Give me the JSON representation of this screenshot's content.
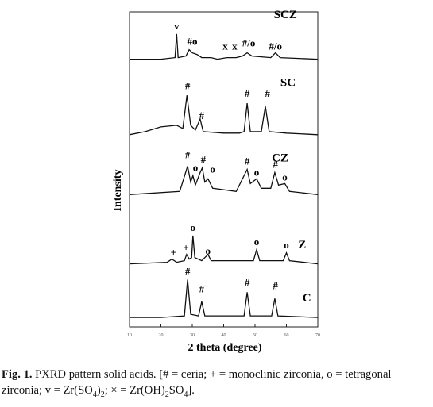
{
  "chart_data": {
    "type": "line",
    "xlabel": "2 theta (degree)",
    "ylabel": "Intensity",
    "xlim": [
      10,
      70
    ],
    "xticks": [
      10,
      20,
      30,
      40,
      50,
      60,
      70
    ],
    "ylim": [
      0,
      100
    ],
    "color": "#111111",
    "series": [
      {
        "name": "C",
        "x": [
          10,
          20,
          27.5,
          28.5,
          29.5,
          32,
          33,
          34,
          46.5,
          47.5,
          48.5,
          55.3,
          56.3,
          57.3,
          70
        ],
        "values": [
          3,
          3,
          3.5,
          15,
          4,
          3.5,
          8,
          3.5,
          3.5,
          11,
          3.5,
          3.5,
          9,
          3.5,
          3
        ]
      },
      {
        "name": "Z",
        "x": [
          10,
          22,
          23.5,
          25,
          27.5,
          28.2,
          29,
          29.8,
          30.2,
          30.8,
          33,
          35,
          36,
          49.5,
          50.5,
          51.5,
          59,
          60,
          61,
          70
        ],
        "values": [
          20,
          20.5,
          21.5,
          20.5,
          21,
          23,
          21.5,
          22,
          29,
          22,
          21,
          23,
          21,
          21,
          24.5,
          21,
          21,
          23.5,
          21,
          20
        ]
      },
      {
        "name": "CZ",
        "x": [
          10,
          26,
          28.5,
          29.5,
          30.2,
          31,
          32.5,
          33.2,
          34,
          35,
          36.5,
          44,
          47.5,
          48.5,
          50.5,
          52,
          55,
          56.3,
          57.5,
          59.5,
          61,
          70
        ],
        "values": [
          42,
          43,
          51,
          46,
          48,
          45,
          49,
          50.5,
          46,
          47,
          44,
          43,
          50,
          45.5,
          47,
          44,
          44,
          49,
          45,
          45.5,
          43,
          42
        ]
      },
      {
        "name": "SC",
        "x": [
          10,
          15,
          20,
          25,
          27,
          28.3,
          29.5,
          31,
          32.5,
          33.5,
          40,
          45,
          46.5,
          47.5,
          48.5,
          52,
          53.3,
          54.5,
          60,
          70
        ],
        "values": [
          61,
          62,
          63.5,
          64,
          63,
          73.5,
          64,
          62.5,
          66,
          62,
          61.5,
          61.5,
          62,
          71,
          62,
          62,
          70,
          62,
          61.5,
          61
        ]
      },
      {
        "name": "SCZ",
        "x": [
          10,
          20,
          24.5,
          25,
          25.5,
          28,
          29,
          30,
          31.5,
          33,
          36,
          38,
          41,
          44,
          46,
          47.5,
          49,
          55,
          56.5,
          58,
          70
        ],
        "values": [
          85,
          85,
          85.5,
          93,
          85.5,
          86,
          88,
          87,
          86.5,
          85.5,
          85.5,
          85,
          85.5,
          85.5,
          86,
          87,
          86,
          85.5,
          87,
          85.5,
          85
        ]
      }
    ],
    "annotations": [
      "v",
      "#o",
      "x",
      "x",
      "#/o",
      "#/o",
      "#",
      "#",
      "#",
      "#",
      "#",
      "o",
      "#",
      "o",
      "#",
      "o",
      "#",
      "o",
      "+",
      "+",
      "o",
      "o",
      "o",
      "o",
      "#",
      "#",
      "#",
      "#"
    ]
  },
  "caption": {
    "label": "Fig. 1.",
    "segments": [
      {
        "text": " PXRD pattern solid acids. [# = ceria; + = monoclinic zirconia, o = tetragonal zirconia; v = Zr(SO"
      },
      {
        "text": "4",
        "sub": true
      },
      {
        "text": ")"
      },
      {
        "text": "2",
        "sub": true
      },
      {
        "text": "; × = Zr(OH)"
      },
      {
        "text": "2",
        "sub": true
      },
      {
        "text": "SO"
      },
      {
        "text": "4",
        "sub": true
      },
      {
        "text": "]."
      }
    ]
  }
}
